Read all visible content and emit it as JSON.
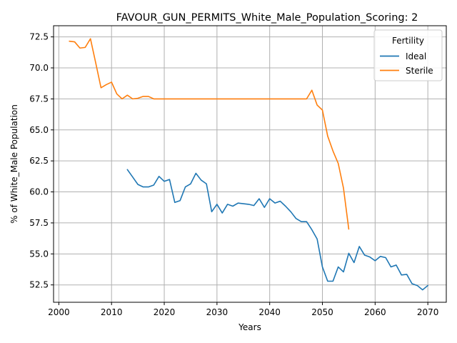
{
  "chart_data": {
    "type": "line",
    "title": "FAVOUR_GUN_PERMITS_White_Male_Population_Scoring: 2",
    "xlabel": "Years",
    "ylabel": "% of White_Male Population",
    "xlim": [
      1999,
      2073.5
    ],
    "ylim": [
      51.1,
      73.4
    ],
    "x_ticks": [
      2000,
      2010,
      2020,
      2030,
      2040,
      2050,
      2060,
      2070
    ],
    "y_ticks": [
      52.5,
      55.0,
      57.5,
      60.0,
      62.5,
      65.0,
      67.5,
      70.0,
      72.5
    ],
    "y_tick_labels": [
      "52.5",
      "55.0",
      "57.5",
      "60.0",
      "62.5",
      "65.0",
      "67.5",
      "70.0",
      "72.5"
    ],
    "grid": true,
    "legend": {
      "title": "Fertility",
      "position": "top-right"
    },
    "series": [
      {
        "name": "Ideal",
        "color": "#1f77b4",
        "x": [
          2013,
          2014,
          2015,
          2016,
          2017,
          2018,
          2019,
          2020,
          2021,
          2022,
          2023,
          2024,
          2025,
          2026,
          2027,
          2028,
          2029,
          2030,
          2031,
          2032,
          2033,
          2034,
          2035,
          2036,
          2037,
          2038,
          2039,
          2040,
          2041,
          2042,
          2043,
          2044,
          2045,
          2046,
          2047,
          2048,
          2049,
          2050,
          2051,
          2052,
          2053,
          2054,
          2055,
          2056,
          2057,
          2058,
          2059,
          2060,
          2061,
          2062,
          2063,
          2064,
          2065,
          2066,
          2067,
          2068,
          2069,
          2070
        ],
        "values": [
          61.8,
          61.2,
          60.6,
          60.4,
          60.4,
          60.55,
          61.25,
          60.85,
          61.0,
          59.15,
          59.3,
          60.4,
          60.65,
          61.5,
          60.95,
          60.65,
          58.4,
          59.0,
          58.3,
          59.0,
          58.85,
          59.1,
          59.05,
          59.0,
          58.9,
          59.45,
          58.75,
          59.45,
          59.1,
          59.25,
          58.85,
          58.4,
          57.85,
          57.6,
          57.6,
          56.95,
          56.2,
          53.95,
          52.8,
          52.8,
          53.95,
          53.55,
          55.05,
          54.3,
          55.6,
          54.9,
          54.75,
          54.45,
          54.8,
          54.7,
          53.95,
          54.1,
          53.3,
          53.35,
          52.6,
          52.45,
          52.1,
          52.45
        ]
      },
      {
        "name": "Sterile",
        "color": "#ff7f0e",
        "x": [
          2002,
          2003,
          2004,
          2005,
          2006,
          2007,
          2008,
          2009,
          2010,
          2011,
          2012,
          2013,
          2014,
          2015,
          2016,
          2017,
          2018,
          2019,
          2020,
          2021,
          2022,
          2023,
          2024,
          2025,
          2026,
          2027,
          2028,
          2029,
          2030,
          2031,
          2032,
          2033,
          2034,
          2035,
          2036,
          2037,
          2038,
          2039,
          2040,
          2041,
          2042,
          2043,
          2044,
          2045,
          2046,
          2047,
          2048,
          2049,
          2050,
          2051,
          2052,
          2053,
          2054,
          2055
        ],
        "values": [
          72.15,
          72.1,
          71.6,
          71.65,
          72.35,
          70.4,
          68.4,
          68.65,
          68.85,
          67.9,
          67.5,
          67.8,
          67.5,
          67.55,
          67.7,
          67.7,
          67.5,
          67.5,
          67.5,
          67.5,
          67.5,
          67.5,
          67.5,
          67.5,
          67.5,
          67.5,
          67.5,
          67.5,
          67.5,
          67.5,
          67.5,
          67.5,
          67.5,
          67.5,
          67.5,
          67.5,
          67.5,
          67.5,
          67.5,
          67.5,
          67.5,
          67.5,
          67.5,
          67.5,
          67.5,
          67.5,
          68.2,
          67.0,
          66.6,
          64.5,
          63.3,
          62.3,
          60.3,
          57.0
        ]
      }
    ]
  }
}
